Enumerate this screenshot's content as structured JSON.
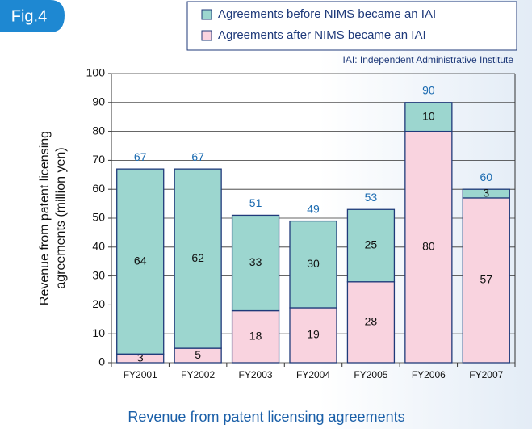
{
  "fig_label": "Fig.4",
  "chart_data": {
    "type": "stacked_bar",
    "title": "Revenue from patent licensing agreements",
    "ylabel_lines": [
      "Revenue from patent licensing",
      "agreements (million yen)"
    ],
    "footnote": "IAI: Independent Administrative Institute",
    "categories": [
      "FY2001",
      "FY2002",
      "FY2003",
      "FY2004",
      "FY2005",
      "FY2006",
      "FY2007"
    ],
    "series": [
      {
        "name": "Agreements after NIMS became an IAI",
        "color": "#f9d3df",
        "values": [
          3,
          5,
          18,
          19,
          28,
          80,
          57
        ]
      },
      {
        "name": "Agreements before NIMS became an IAI",
        "color": "#9cd6cf",
        "values": [
          64,
          62,
          33,
          30,
          25,
          10,
          3
        ]
      }
    ],
    "legend_order": [
      1,
      0
    ],
    "totals": [
      67,
      67,
      51,
      49,
      53,
      90,
      60
    ],
    "ylim": [
      0,
      100
    ],
    "yticks": [
      0,
      10,
      20,
      30,
      40,
      50,
      60,
      70,
      80,
      90,
      100
    ],
    "grid": true
  }
}
